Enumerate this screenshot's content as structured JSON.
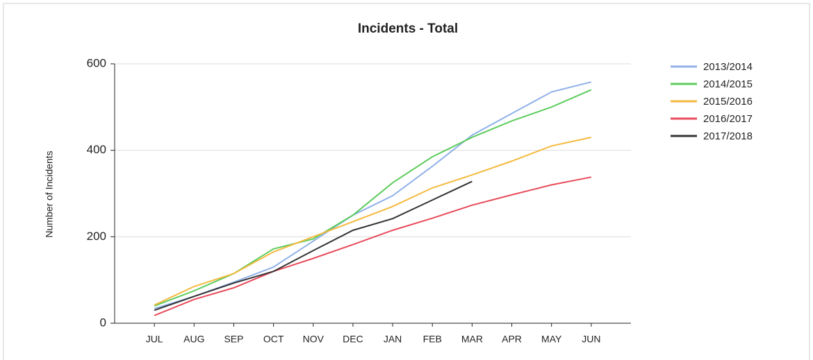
{
  "chart_data": {
    "type": "line",
    "title": "Incidents - Total",
    "y_label": "Number of Incidents",
    "categories": [
      "JUL",
      "AUG",
      "SEP",
      "OCT",
      "NOV",
      "DEC",
      "JAN",
      "FEB",
      "MAR",
      "APR",
      "MAY",
      "JUN"
    ],
    "series": [
      {
        "name": "2013/2014",
        "color": "#8fb0e8",
        "values": [
          34,
          62,
          95,
          130,
          190,
          250,
          295,
          363,
          435,
          485,
          535,
          558
        ]
      },
      {
        "name": "2014/2015",
        "color": "#5ccc5c",
        "values": [
          40,
          75,
          115,
          172,
          195,
          250,
          325,
          385,
          430,
          468,
          500,
          540
        ]
      },
      {
        "name": "2015/2016",
        "color": "#f5b93e",
        "values": [
          42,
          85,
          115,
          165,
          200,
          235,
          270,
          313,
          343,
          375,
          410,
          430
        ]
      },
      {
        "name": "2016/2017",
        "color": "#e84a5a",
        "values": [
          18,
          55,
          82,
          120,
          150,
          182,
          215,
          243,
          273,
          297,
          320,
          338
        ]
      },
      {
        "name": "2017/2018",
        "color": "#333333",
        "values": [
          30,
          62,
          93,
          120,
          168,
          215,
          242,
          285,
          328,
          null,
          null,
          null
        ]
      }
    ],
    "ylim": [
      0,
      600
    ],
    "yticks": [
      0,
      200,
      400,
      600
    ],
    "grid": true,
    "legend": "right"
  }
}
